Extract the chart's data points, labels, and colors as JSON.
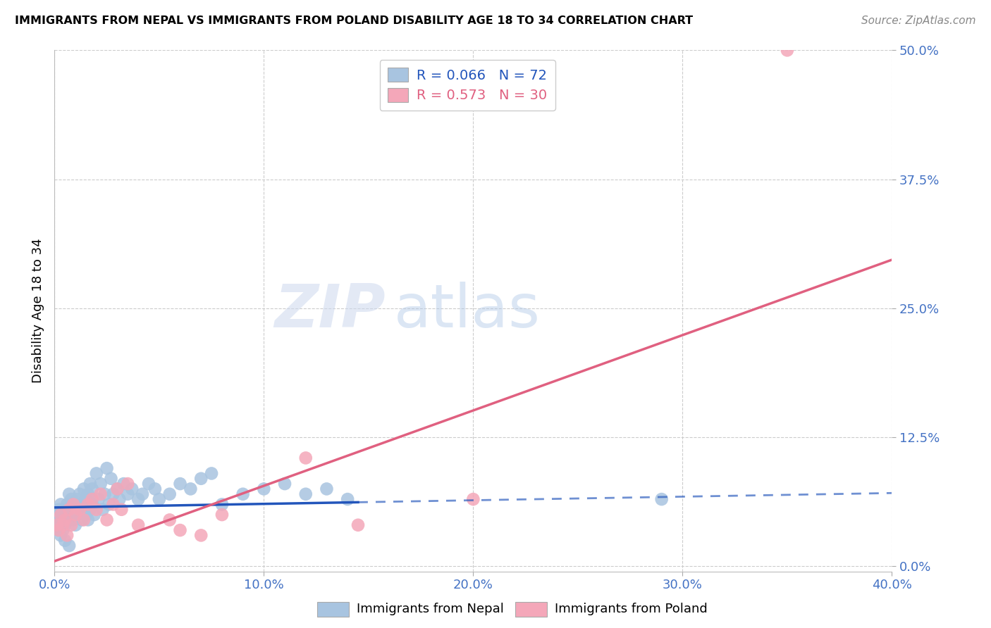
{
  "title": "IMMIGRANTS FROM NEPAL VS IMMIGRANTS FROM POLAND DISABILITY AGE 18 TO 34 CORRELATION CHART",
  "source": "Source: ZipAtlas.com",
  "ylabel_label": "Disability Age 18 to 34",
  "xlim": [
    0.0,
    0.4
  ],
  "ylim": [
    -0.005,
    0.5
  ],
  "nepal_R": 0.066,
  "nepal_N": 72,
  "poland_R": 0.573,
  "poland_N": 30,
  "nepal_color": "#a8c4e0",
  "poland_color": "#f4a7b9",
  "nepal_line_color": "#2255bb",
  "poland_line_color": "#e06080",
  "nepal_line_solid_end": 0.145,
  "poland_line_end": 0.4,
  "nepal_scatter_x": [
    0.001,
    0.002,
    0.002,
    0.003,
    0.003,
    0.004,
    0.004,
    0.005,
    0.005,
    0.006,
    0.006,
    0.007,
    0.007,
    0.008,
    0.008,
    0.009,
    0.009,
    0.01,
    0.01,
    0.011,
    0.011,
    0.012,
    0.012,
    0.013,
    0.013,
    0.014,
    0.014,
    0.015,
    0.015,
    0.016,
    0.016,
    0.017,
    0.017,
    0.018,
    0.018,
    0.019,
    0.02,
    0.021,
    0.022,
    0.023,
    0.024,
    0.025,
    0.026,
    0.027,
    0.028,
    0.03,
    0.031,
    0.033,
    0.035,
    0.037,
    0.04,
    0.042,
    0.045,
    0.048,
    0.05,
    0.055,
    0.06,
    0.065,
    0.07,
    0.075,
    0.08,
    0.09,
    0.1,
    0.11,
    0.12,
    0.13,
    0.14,
    0.002,
    0.003,
    0.005,
    0.007,
    0.29
  ],
  "nepal_scatter_y": [
    0.05,
    0.055,
    0.04,
    0.06,
    0.045,
    0.055,
    0.035,
    0.05,
    0.04,
    0.06,
    0.045,
    0.055,
    0.07,
    0.05,
    0.065,
    0.045,
    0.055,
    0.06,
    0.04,
    0.065,
    0.05,
    0.055,
    0.07,
    0.045,
    0.06,
    0.055,
    0.075,
    0.05,
    0.065,
    0.045,
    0.07,
    0.055,
    0.08,
    0.06,
    0.075,
    0.05,
    0.09,
    0.065,
    0.08,
    0.055,
    0.07,
    0.095,
    0.06,
    0.085,
    0.07,
    0.075,
    0.065,
    0.08,
    0.07,
    0.075,
    0.065,
    0.07,
    0.08,
    0.075,
    0.065,
    0.07,
    0.08,
    0.075,
    0.085,
    0.09,
    0.06,
    0.07,
    0.075,
    0.08,
    0.07,
    0.075,
    0.065,
    0.035,
    0.03,
    0.025,
    0.02,
    0.065
  ],
  "poland_scatter_x": [
    0.001,
    0.002,
    0.003,
    0.004,
    0.005,
    0.006,
    0.007,
    0.008,
    0.009,
    0.01,
    0.012,
    0.014,
    0.016,
    0.018,
    0.02,
    0.022,
    0.025,
    0.028,
    0.03,
    0.032,
    0.035,
    0.04,
    0.055,
    0.06,
    0.07,
    0.08,
    0.12,
    0.145,
    0.2,
    0.35
  ],
  "poland_scatter_y": [
    0.04,
    0.035,
    0.05,
    0.04,
    0.045,
    0.03,
    0.055,
    0.04,
    0.06,
    0.05,
    0.055,
    0.045,
    0.06,
    0.065,
    0.055,
    0.07,
    0.045,
    0.06,
    0.075,
    0.055,
    0.08,
    0.04,
    0.045,
    0.035,
    0.03,
    0.05,
    0.105,
    0.04,
    0.065,
    0.5
  ],
  "nepal_line_m": 0.035,
  "nepal_line_b": 0.057,
  "poland_line_m": 0.73,
  "poland_line_b": 0.005,
  "grid_color": "#cccccc",
  "background_color": "#ffffff",
  "watermark_zip": "ZIP",
  "watermark_atlas": "atlas"
}
